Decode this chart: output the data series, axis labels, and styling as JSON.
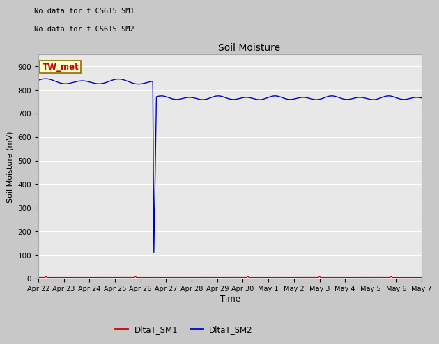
{
  "title": "Soil Moisture",
  "ylabel": "Soil Moisture (mV)",
  "xlabel": "Time",
  "no_data_text1": "No data for f CS615_SM1",
  "no_data_text2": "No data for f CS615_SM2",
  "tw_met_label": "TW_met",
  "legend_labels": [
    "DltaT_SM1",
    "DltaT_SM2"
  ],
  "legend_colors": [
    "#cc0000",
    "#0000cc"
  ],
  "fig_bg_color": "#c8c8c8",
  "plot_bg_color": "#e8e8e8",
  "ylim": [
    0,
    950
  ],
  "yticks": [
    0,
    100,
    200,
    300,
    400,
    500,
    600,
    700,
    800,
    900
  ],
  "sm2_pre_drop_level": 835,
  "sm2_post_drop_level": 765,
  "sm2_drop_min": 100,
  "sm2_drop_day": 4.5,
  "sm1_base_level": 4,
  "noise_amp_pre": 8,
  "noise_amp_post": 6,
  "noise_freq_pre": 0.7,
  "noise_freq_post": 0.9,
  "xtick_labels": [
    "Apr 22",
    "Apr 23",
    "Apr 24",
    "Apr 25",
    "Apr 26",
    "Apr 27",
    "Apr 28",
    "Apr 29",
    "Apr 30",
    "May 1",
    "May 2",
    "May 3",
    "May 4",
    "May 5",
    "May 6",
    "May 7"
  ]
}
